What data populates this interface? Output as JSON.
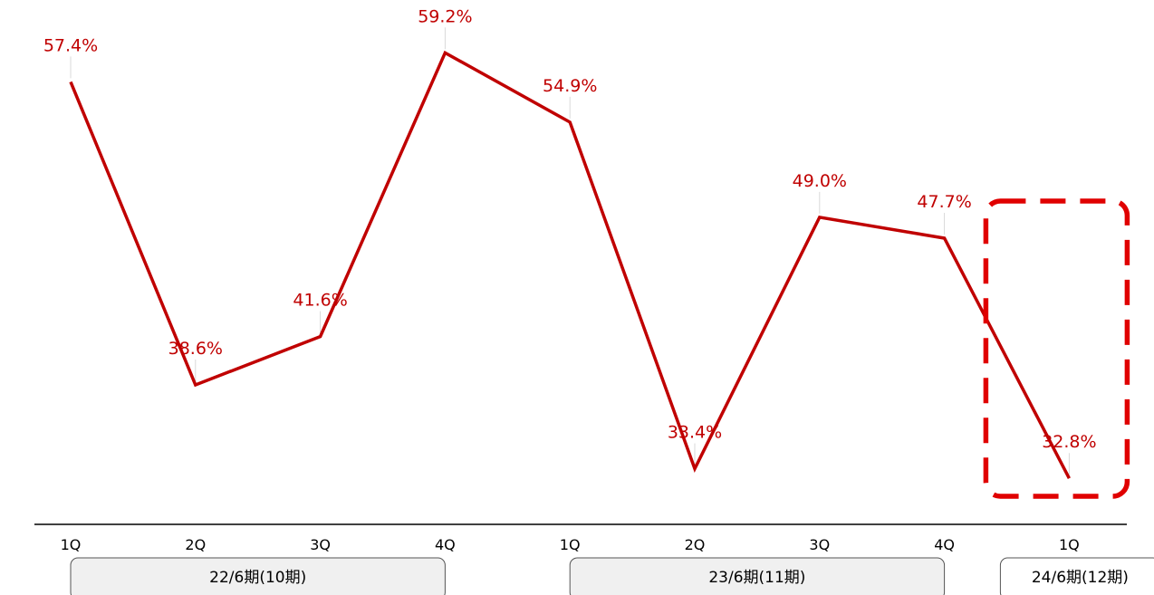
{
  "chart_data": {
    "type": "line",
    "title": "",
    "xlabel": "",
    "ylabel": "",
    "grid": false,
    "categories": [
      "1Q",
      "2Q",
      "3Q",
      "4Q",
      "1Q",
      "2Q",
      "3Q",
      "4Q",
      "1Q"
    ],
    "groups": [
      {
        "label": "22/6期(10期)",
        "start": 0,
        "end": 3
      },
      {
        "label": "23/6期(11期)",
        "start": 4,
        "end": 7
      },
      {
        "label": "24/6期(12期)",
        "start": 8,
        "end": 8
      }
    ],
    "series": [
      {
        "values": [
          57.4,
          38.6,
          41.6,
          59.2,
          54.9,
          33.4,
          49.0,
          47.7,
          32.8
        ],
        "labels": [
          "57.4%",
          "38.6%",
          "41.6%",
          "59.2%",
          "54.9%",
          "33.4%",
          "49.0%",
          "47.7%",
          "32.8%"
        ],
        "color": "#c00000"
      }
    ],
    "highlight": {
      "index": 8,
      "color": "#e00000",
      "style": "dashed"
    }
  }
}
